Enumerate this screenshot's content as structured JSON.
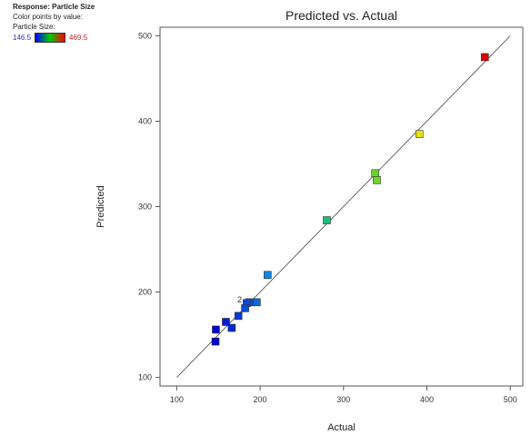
{
  "legend": {
    "response": "Response: Particle Size",
    "color_mode": "Color points by value:",
    "variable": "Particle Size:",
    "min_label": "146.5",
    "max_label": "469.5",
    "min_value": 146.5,
    "max_value": 469.5
  },
  "chart_data": {
    "type": "scatter",
    "title": "Predicted vs. Actual",
    "xlabel": "Actual",
    "ylabel": "Predicted",
    "xlim": [
      80,
      515
    ],
    "ylim": [
      90,
      510
    ],
    "xticks": [
      100,
      200,
      300,
      400,
      500
    ],
    "yticks": [
      100,
      200,
      300,
      400,
      500
    ],
    "grid": false,
    "reference_line": {
      "from": [
        100,
        100
      ],
      "to": [
        500,
        500
      ]
    },
    "annotation": {
      "text": "2",
      "x": 182,
      "y": 189
    },
    "points": [
      {
        "x": 469.5,
        "y": 475
      },
      {
        "x": 391,
        "y": 385
      },
      {
        "x": 338,
        "y": 339
      },
      {
        "x": 340,
        "y": 331
      },
      {
        "x": 280,
        "y": 284
      },
      {
        "x": 209,
        "y": 220
      },
      {
        "x": 196,
        "y": 188
      },
      {
        "x": 187,
        "y": 188
      },
      {
        "x": 184,
        "y": 187
      },
      {
        "x": 182,
        "y": 181
      },
      {
        "x": 174,
        "y": 172
      },
      {
        "x": 166,
        "y": 158
      },
      {
        "x": 159,
        "y": 165
      },
      {
        "x": 147,
        "y": 156
      },
      {
        "x": 146.5,
        "y": 142
      }
    ]
  }
}
